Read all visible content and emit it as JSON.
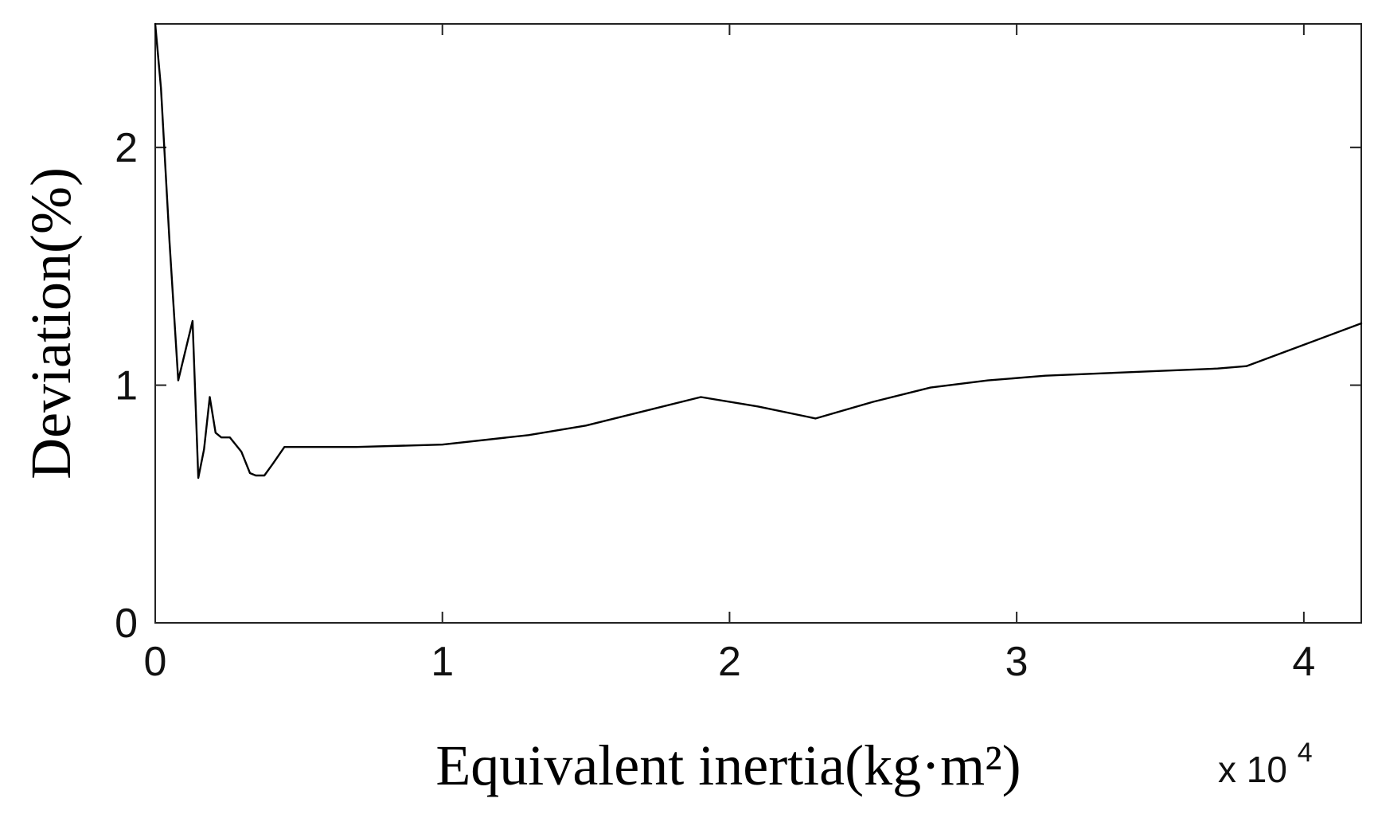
{
  "chart_data": {
    "type": "line",
    "title": "",
    "xlabel": "Equivalent inertia(kg·m²)",
    "ylabel": "Deviation(%)",
    "x_multiplier": {
      "base": "x 10",
      "exponent": "4"
    },
    "xlim": [
      0,
      4.2
    ],
    "ylim": [
      0,
      2.52
    ],
    "xticks": [
      0,
      1,
      2,
      3,
      4
    ],
    "xtick_labels": [
      "0",
      "1",
      "2",
      "3",
      "4"
    ],
    "yticks": [
      0,
      1,
      2
    ],
    "ytick_labels": [
      "0",
      "1",
      "2"
    ],
    "grid": false,
    "line_color": "#000000",
    "series": [
      {
        "x": [
          0.0,
          0.02,
          0.05,
          0.08,
          0.1,
          0.13,
          0.15,
          0.17,
          0.19,
          0.21,
          0.23,
          0.26,
          0.3,
          0.33,
          0.35,
          0.38,
          0.41,
          0.45,
          0.5,
          0.55,
          0.7,
          1.0,
          1.3,
          1.5,
          1.7,
          1.9,
          2.1,
          2.3,
          2.5,
          2.7,
          2.9,
          3.1,
          3.3,
          3.5,
          3.7,
          3.8,
          4.0,
          4.2
        ],
        "y": [
          2.52,
          2.25,
          1.6,
          1.02,
          1.12,
          1.27,
          0.61,
          0.73,
          0.95,
          0.8,
          0.78,
          0.78,
          0.72,
          0.63,
          0.62,
          0.62,
          0.67,
          0.74,
          0.74,
          0.74,
          0.74,
          0.75,
          0.79,
          0.83,
          0.89,
          0.95,
          0.91,
          0.86,
          0.93,
          0.99,
          1.02,
          1.04,
          1.05,
          1.06,
          1.07,
          1.08,
          1.17,
          1.26
        ]
      }
    ]
  }
}
